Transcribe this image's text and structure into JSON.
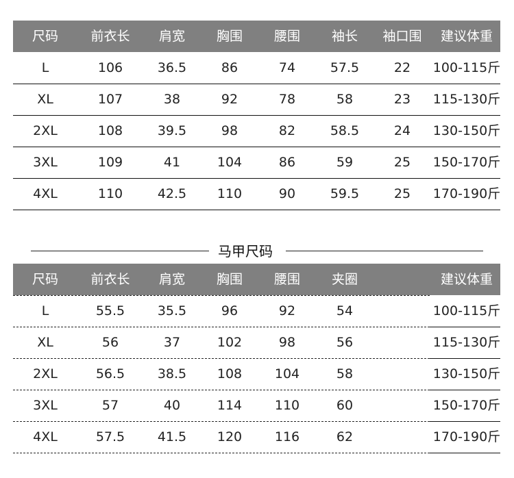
{
  "table1": {
    "headers": [
      "尺码",
      "前衣长",
      "肩宽",
      "胸围",
      "腰围",
      "袖长",
      "袖口围",
      "建议体重"
    ],
    "rows": [
      [
        "L",
        "106",
        "36.5",
        "86",
        "74",
        "57.5",
        "22",
        "100-115斤"
      ],
      [
        "XL",
        "107",
        "38",
        "92",
        "78",
        "58",
        "23",
        "115-130斤"
      ],
      [
        "2XL",
        "108",
        "39.5",
        "98",
        "82",
        "58.5",
        "24",
        "130-150斤"
      ],
      [
        "3XL",
        "109",
        "41",
        "104",
        "86",
        "59",
        "25",
        "150-170斤"
      ],
      [
        "4XL",
        "110",
        "42.5",
        "110",
        "90",
        "59.5",
        "25",
        "170-190斤"
      ]
    ]
  },
  "section_title": "马甲尺码",
  "table2": {
    "headers": [
      "尺码",
      "前衣长",
      "肩宽",
      "胸围",
      "腰围",
      "夹圈",
      "",
      "建议体重"
    ],
    "rows": [
      [
        "L",
        "55.5",
        "35.5",
        "96",
        "92",
        "54",
        "",
        "100-115斤"
      ],
      [
        "XL",
        "56",
        "37",
        "102",
        "98",
        "56",
        "",
        "115-130斤"
      ],
      [
        "2XL",
        "56.5",
        "38.5",
        "108",
        "104",
        "58",
        "",
        "130-150斤"
      ],
      [
        "3XL",
        "57",
        "40",
        "114",
        "110",
        "60",
        "",
        "150-170斤"
      ],
      [
        "4XL",
        "57.5",
        "41.5",
        "120",
        "116",
        "62",
        "",
        "170-190斤"
      ]
    ]
  },
  "colors": {
    "header_bg": "#808080",
    "header_text": "#ffffff"
  }
}
